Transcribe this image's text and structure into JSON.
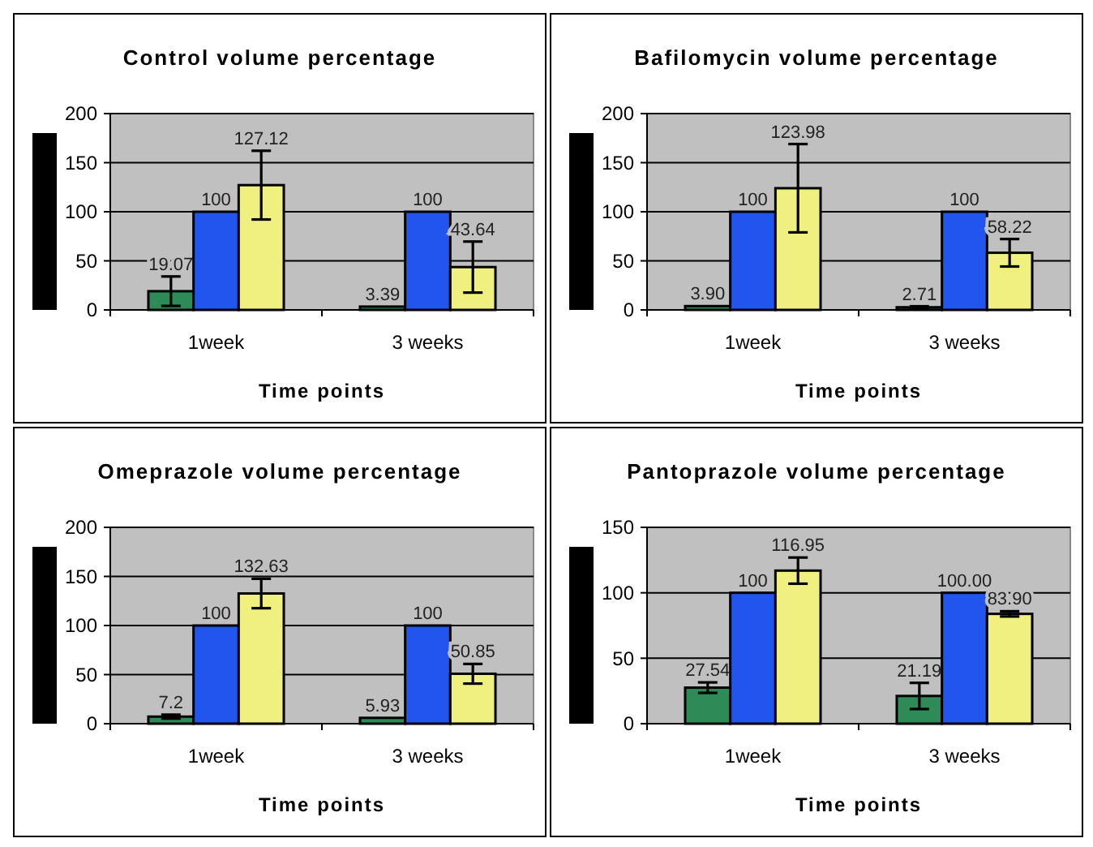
{
  "chart_data": [
    {
      "type": "bar",
      "title": "Control volume percentage",
      "xlabel": "Time points",
      "categories": [
        "1week",
        "3 weeks"
      ],
      "ylim": [
        0,
        200
      ],
      "yticks": [
        0,
        50,
        100,
        150,
        200
      ],
      "grid": "y",
      "series": [
        {
          "color": "#2e8b57",
          "values": [
            19.07,
            3.39
          ],
          "errors": [
            15,
            null
          ],
          "value_labels": [
            "19.07",
            "3.39"
          ]
        },
        {
          "color": "#2255ee",
          "values": [
            100,
            100
          ],
          "value_labels": [
            "100",
            "100"
          ]
        },
        {
          "color": "#f0f080",
          "values": [
            127.12,
            43.64
          ],
          "errors": [
            35,
            26
          ],
          "value_labels": [
            "127.12",
            "43.64"
          ]
        }
      ]
    },
    {
      "type": "bar",
      "title": "Bafilomycin volume percentage",
      "xlabel": "Time points",
      "categories": [
        "1week",
        "3 weeks"
      ],
      "ylim": [
        0,
        200
      ],
      "yticks": [
        0,
        50,
        100,
        150,
        200
      ],
      "grid": "y",
      "series": [
        {
          "color": "#2e8b57",
          "values": [
            3.9,
            2.71
          ],
          "errors": [
            null,
            1
          ],
          "value_labels": [
            "3.90",
            "2.71"
          ]
        },
        {
          "color": "#2255ee",
          "values": [
            100,
            100
          ],
          "value_labels": [
            "100",
            "100"
          ]
        },
        {
          "color": "#f0f080",
          "values": [
            123.98,
            58.22
          ],
          "errors": [
            45,
            14
          ],
          "value_labels": [
            "123.98",
            "58.22"
          ]
        }
      ]
    },
    {
      "type": "bar",
      "title": "Omeprazole volume percentage",
      "xlabel": "Time points",
      "categories": [
        "1week",
        "3 weeks"
      ],
      "ylim": [
        0,
        200
      ],
      "yticks": [
        0,
        50,
        100,
        150,
        200
      ],
      "grid": "y",
      "series": [
        {
          "color": "#2e8b57",
          "values": [
            7.2,
            5.93
          ],
          "errors": [
            2,
            null
          ],
          "value_labels": [
            "7.2",
            "5.93"
          ]
        },
        {
          "color": "#2255ee",
          "values": [
            100,
            100
          ],
          "value_labels": [
            "100",
            "100"
          ]
        },
        {
          "color": "#f0f080",
          "values": [
            132.63,
            50.85
          ],
          "errors": [
            15,
            10
          ],
          "value_labels": [
            "132.63",
            "50.85"
          ]
        }
      ]
    },
    {
      "type": "bar",
      "title": "Pantoprazole volume percentage",
      "xlabel": "Time points",
      "categories": [
        "1week",
        "3 weeks"
      ],
      "ylim": [
        0,
        150
      ],
      "yticks": [
        0,
        50,
        100,
        150
      ],
      "grid": "y",
      "series": [
        {
          "color": "#2e8b57",
          "values": [
            27.54,
            21.19
          ],
          "errors": [
            4,
            10
          ],
          "value_labels": [
            "27.54",
            "21.19"
          ]
        },
        {
          "color": "#2255ee",
          "values": [
            100,
            100
          ],
          "value_labels": [
            "100",
            "100.00"
          ]
        },
        {
          "color": "#f0f080",
          "values": [
            116.95,
            83.9
          ],
          "errors": [
            10,
            2
          ],
          "value_labels": [
            "116.95",
            "83.90"
          ]
        }
      ]
    }
  ]
}
